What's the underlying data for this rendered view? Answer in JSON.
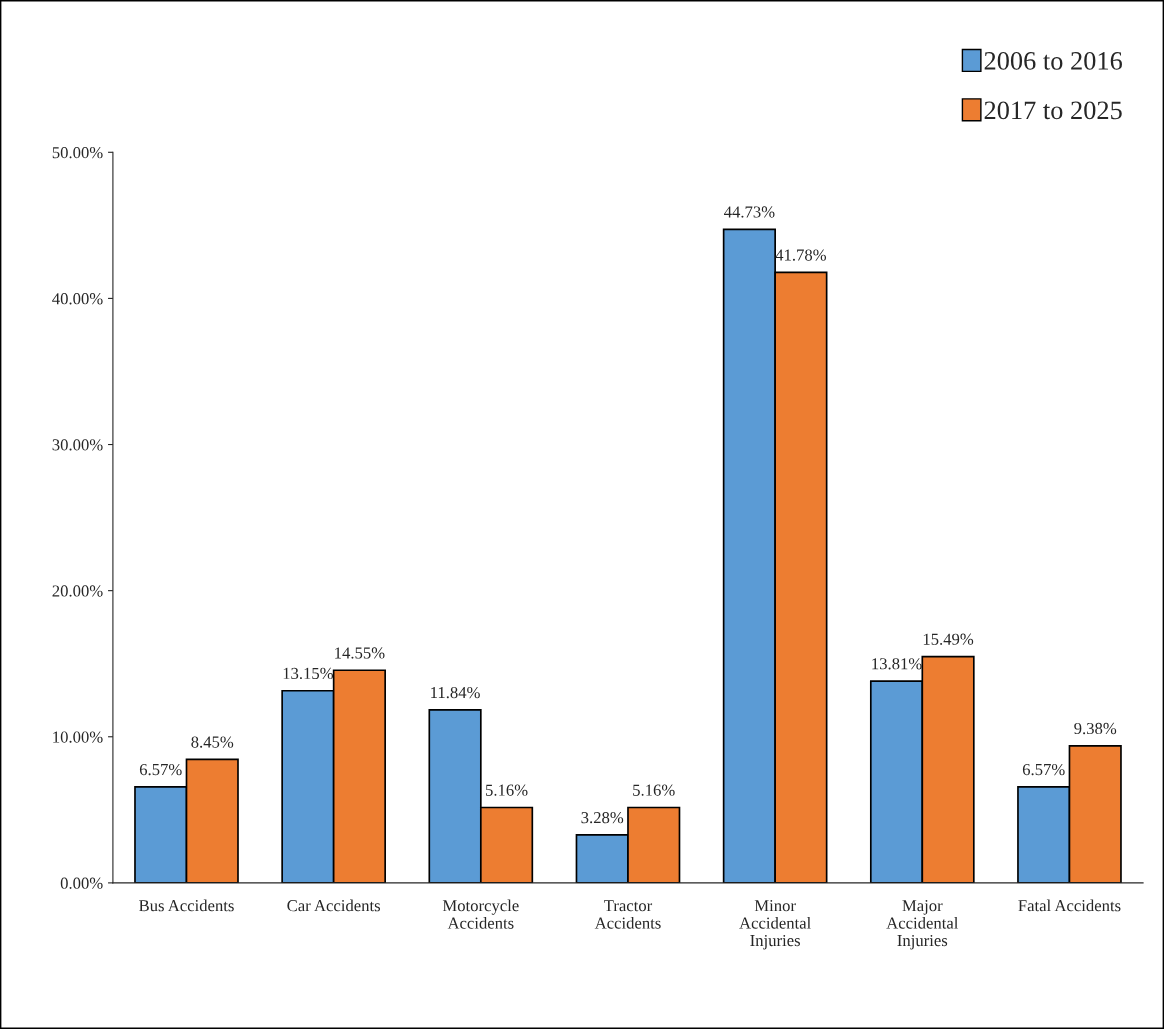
{
  "chart_data": {
    "type": "bar",
    "categories": [
      "Bus Accidents",
      "Car Accidents",
      "Motorcycle\nAccidents",
      "Tractor\nAccidents",
      "Minor\nAccidental\nInjuries",
      "Major\nAccidental\nInjuries",
      "Fatal Accidents"
    ],
    "series": [
      {
        "name": "2006 to 2016",
        "color": "#5b9bd5",
        "values": [
          6.57,
          13.15,
          11.84,
          3.28,
          44.73,
          13.81,
          6.57
        ],
        "value_labels": [
          "6.57%",
          "13.15%",
          "11.84%",
          "3.28%",
          "44.73%",
          "13.81%",
          "6.57%"
        ]
      },
      {
        "name": "2017 to 2025",
        "color": "#ed7d31",
        "values": [
          8.45,
          14.55,
          5.16,
          5.16,
          41.78,
          15.49,
          9.38
        ],
        "value_labels": [
          "8.45%",
          "14.55%",
          "5.16%",
          "5.16%",
          "41.78%",
          "15.49%",
          "9.38%"
        ]
      }
    ],
    "ylim": [
      0,
      50
    ],
    "yticks": [
      {
        "value": 0,
        "label": "0.00%"
      },
      {
        "value": 10,
        "label": "10.00%"
      },
      {
        "value": 20,
        "label": "20.00%"
      },
      {
        "value": 30,
        "label": "30.00%"
      },
      {
        "value": 40,
        "label": "40.00%"
      },
      {
        "value": 50,
        "label": "50.00%"
      }
    ],
    "grid": false,
    "legend": "top right"
  }
}
